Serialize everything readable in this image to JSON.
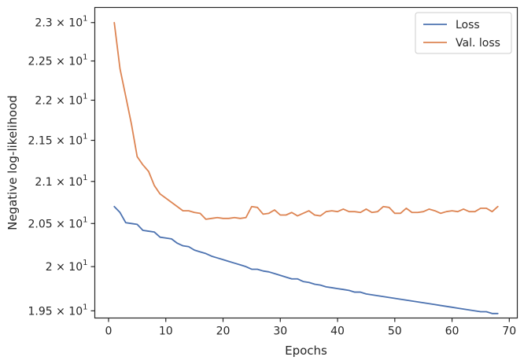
{
  "chart_data": {
    "type": "line",
    "xlabel": "Epochs",
    "ylabel": "Negative log-likelihood",
    "xlim": [
      -2.4,
      71.4
    ],
    "ylim": [
      19.42,
      23.2
    ],
    "yscale": "log",
    "grid": false,
    "legend_position": "top-right",
    "x_ticks": [
      {
        "value": 0,
        "label": "0"
      },
      {
        "value": 10,
        "label": "10"
      },
      {
        "value": 20,
        "label": "20"
      },
      {
        "value": 30,
        "label": "30"
      },
      {
        "value": 40,
        "label": "40"
      },
      {
        "value": 50,
        "label": "50"
      },
      {
        "value": 60,
        "label": "60"
      },
      {
        "value": 70,
        "label": "70"
      }
    ],
    "y_ticks": [
      {
        "value": 19.5,
        "mantissa": "1.95",
        "base": "10",
        "exp": "1"
      },
      {
        "value": 20.0,
        "mantissa": "2",
        "base": "10",
        "exp": "1"
      },
      {
        "value": 20.5,
        "mantissa": "2.05",
        "base": "10",
        "exp": "1"
      },
      {
        "value": 21.0,
        "mantissa": "2.1",
        "base": "10",
        "exp": "1"
      },
      {
        "value": 21.5,
        "mantissa": "2.15",
        "base": "10",
        "exp": "1"
      },
      {
        "value": 22.0,
        "mantissa": "2.2",
        "base": "10",
        "exp": "1"
      },
      {
        "value": 22.5,
        "mantissa": "2.25",
        "base": "10",
        "exp": "1"
      },
      {
        "value": 23.0,
        "mantissa": "2.3",
        "base": "10",
        "exp": "1"
      }
    ],
    "x": [
      1,
      2,
      3,
      4,
      5,
      6,
      7,
      8,
      9,
      10,
      11,
      12,
      13,
      14,
      15,
      16,
      17,
      18,
      19,
      20,
      21,
      22,
      23,
      24,
      25,
      26,
      27,
      28,
      29,
      30,
      31,
      32,
      33,
      34,
      35,
      36,
      37,
      38,
      39,
      40,
      41,
      42,
      43,
      44,
      45,
      46,
      47,
      48,
      49,
      50,
      51,
      52,
      53,
      54,
      55,
      56,
      57,
      58,
      59,
      60,
      61,
      62,
      63,
      64,
      65,
      66,
      67,
      68
    ],
    "series": [
      {
        "name": "Loss",
        "color": "#4c72b0",
        "values": [
          20.7,
          20.63,
          20.51,
          20.5,
          20.49,
          20.42,
          20.41,
          20.4,
          20.34,
          20.33,
          20.32,
          20.27,
          20.24,
          20.23,
          20.19,
          20.17,
          20.15,
          20.12,
          20.1,
          20.08,
          20.06,
          20.04,
          20.02,
          20.0,
          19.97,
          19.97,
          19.95,
          19.94,
          19.92,
          19.9,
          19.88,
          19.86,
          19.86,
          19.83,
          19.82,
          19.8,
          19.79,
          19.77,
          19.76,
          19.75,
          19.74,
          19.73,
          19.71,
          19.71,
          19.69,
          19.68,
          19.67,
          19.66,
          19.65,
          19.64,
          19.63,
          19.62,
          19.61,
          19.6,
          19.59,
          19.58,
          19.57,
          19.56,
          19.55,
          19.54,
          19.53,
          19.52,
          19.51,
          19.5,
          19.49,
          19.49,
          19.47,
          19.47
        ]
      },
      {
        "name": "Val. loss",
        "color": "#dd8452",
        "values": [
          23.0,
          22.4,
          22.05,
          21.7,
          21.3,
          21.2,
          21.12,
          20.95,
          20.85,
          20.8,
          20.75,
          20.7,
          20.65,
          20.65,
          20.63,
          20.62,
          20.55,
          20.56,
          20.57,
          20.56,
          20.56,
          20.57,
          20.56,
          20.57,
          20.7,
          20.69,
          20.61,
          20.62,
          20.66,
          20.6,
          20.6,
          20.63,
          20.59,
          20.62,
          20.65,
          20.6,
          20.59,
          20.64,
          20.65,
          20.64,
          20.67,
          20.64,
          20.64,
          20.63,
          20.67,
          20.63,
          20.64,
          20.7,
          20.69,
          20.62,
          20.62,
          20.68,
          20.63,
          20.63,
          20.64,
          20.67,
          20.65,
          20.62,
          20.64,
          20.65,
          20.64,
          20.67,
          20.64,
          20.64,
          20.68,
          20.68,
          20.64,
          20.7
        ]
      }
    ]
  }
}
